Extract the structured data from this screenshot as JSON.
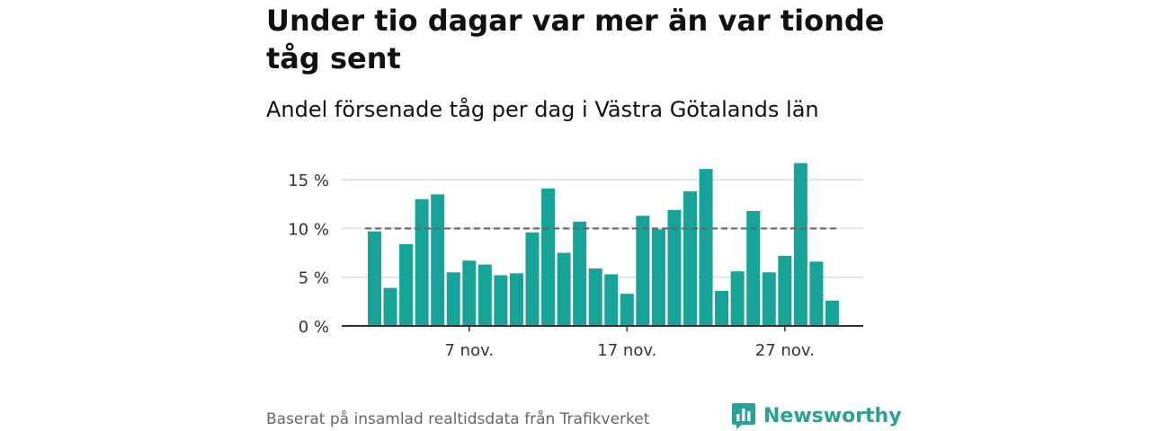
{
  "title": "Under tio dagar var mer än var tionde tåg sent",
  "subtitle": "Andel försenade tåg per dag i Västra Götalands län",
  "footer": "Baserat på insamlad realtidsdata från Trafikverket",
  "brand": {
    "name": "Newsworthy",
    "icon": "newsworthy-logo-icon",
    "color": "#2aa198"
  },
  "colors": {
    "bar": "#17a398",
    "reference_line": "#666666",
    "grid": "#dddddd",
    "axis": "#333333"
  },
  "chart_data": {
    "type": "bar",
    "x": [
      "1 nov.",
      "2 nov.",
      "3 nov.",
      "4 nov.",
      "5 nov.",
      "6 nov.",
      "7 nov.",
      "8 nov.",
      "9 nov.",
      "10 nov.",
      "11 nov.",
      "12 nov.",
      "13 nov.",
      "14 nov.",
      "15 nov.",
      "16 nov.",
      "17 nov.",
      "18 nov.",
      "19 nov.",
      "20 nov.",
      "21 nov.",
      "22 nov.",
      "23 nov.",
      "24 nov.",
      "25 nov.",
      "26 nov.",
      "27 nov.",
      "28 nov.",
      "29 nov.",
      "30 nov."
    ],
    "values": [
      9.7,
      3.9,
      8.4,
      13.0,
      13.5,
      5.5,
      6.7,
      6.3,
      5.2,
      5.4,
      9.6,
      14.1,
      7.5,
      10.7,
      5.9,
      5.3,
      3.3,
      11.3,
      9.9,
      11.9,
      13.8,
      16.1,
      3.6,
      5.6,
      11.8,
      5.5,
      7.2,
      16.7,
      6.6,
      2.6
    ],
    "unit": "%",
    "ylim": [
      0,
      17.5
    ],
    "yticks": [
      0,
      5,
      10,
      15
    ],
    "ytick_labels": [
      "0 %",
      "5 %",
      "10 %",
      "15 %"
    ],
    "xtick_labels": [
      "7 nov.",
      "17 nov.",
      "27 nov."
    ],
    "reference_line": 10,
    "grid": true
  }
}
